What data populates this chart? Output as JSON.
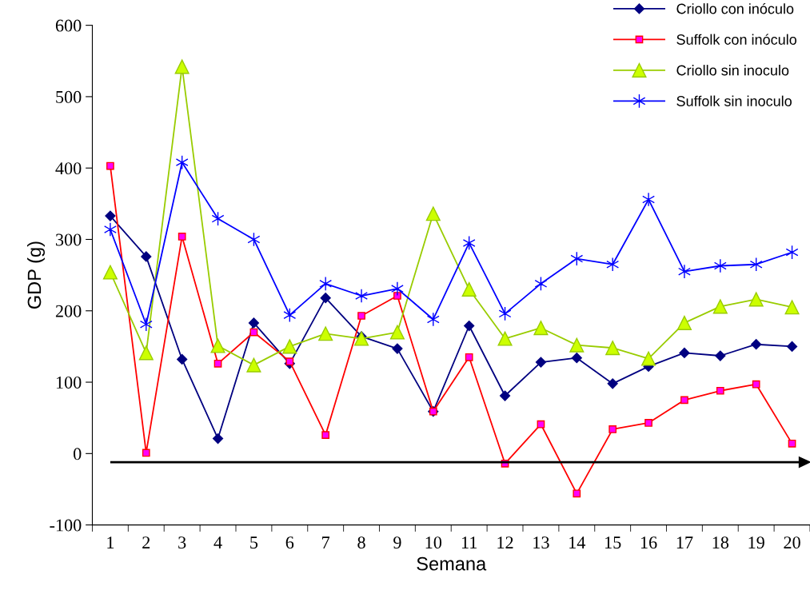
{
  "chart_data": {
    "type": "line",
    "xlabel": "Semana",
    "ylabel": "GDP (g)",
    "categories": [
      "1",
      "2",
      "3",
      "4",
      "5",
      "6",
      "7",
      "8",
      "9",
      "10",
      "11",
      "12",
      "13",
      "14",
      "15",
      "16",
      "17",
      "18",
      "19",
      "20"
    ],
    "ylim": [
      -100,
      600
    ],
    "yticks": [
      -100,
      0,
      100,
      200,
      300,
      400,
      500,
      600
    ],
    "grid": false,
    "legend": "top right",
    "series": [
      {
        "name": "Criollo con inóculo",
        "color": "#000080",
        "marker": "diamond",
        "values": [
          333,
          276,
          132,
          21,
          183,
          126,
          218,
          164,
          147,
          59,
          179,
          81,
          128,
          134,
          98,
          122,
          141,
          137,
          153,
          150
        ]
      },
      {
        "name": "Suffolk con inóculo",
        "color": "#ff0000",
        "marker": "square",
        "values": [
          403,
          1,
          304,
          126,
          170,
          129,
          26,
          193,
          221,
          59,
          135,
          -14,
          41,
          -56,
          34,
          43,
          75,
          88,
          97,
          14
        ]
      },
      {
        "name": "Criollo sin inoculo",
        "color": "#99cc00",
        "marker": "triangle",
        "values": [
          254,
          141,
          542,
          151,
          124,
          150,
          168,
          161,
          170,
          336,
          230,
          161,
          176,
          152,
          148,
          133,
          183,
          206,
          216,
          205
        ]
      },
      {
        "name": "Suffolk sin inoculo",
        "color": "#0000ff",
        "marker": "cross",
        "values": [
          314,
          181,
          408,
          329,
          300,
          194,
          238,
          221,
          231,
          188,
          295,
          196,
          238,
          273,
          265,
          356,
          255,
          263,
          265,
          282
        ]
      }
    ],
    "ref_lines": [
      {
        "axis": "y",
        "value": -12,
        "color": "#000000"
      }
    ]
  }
}
